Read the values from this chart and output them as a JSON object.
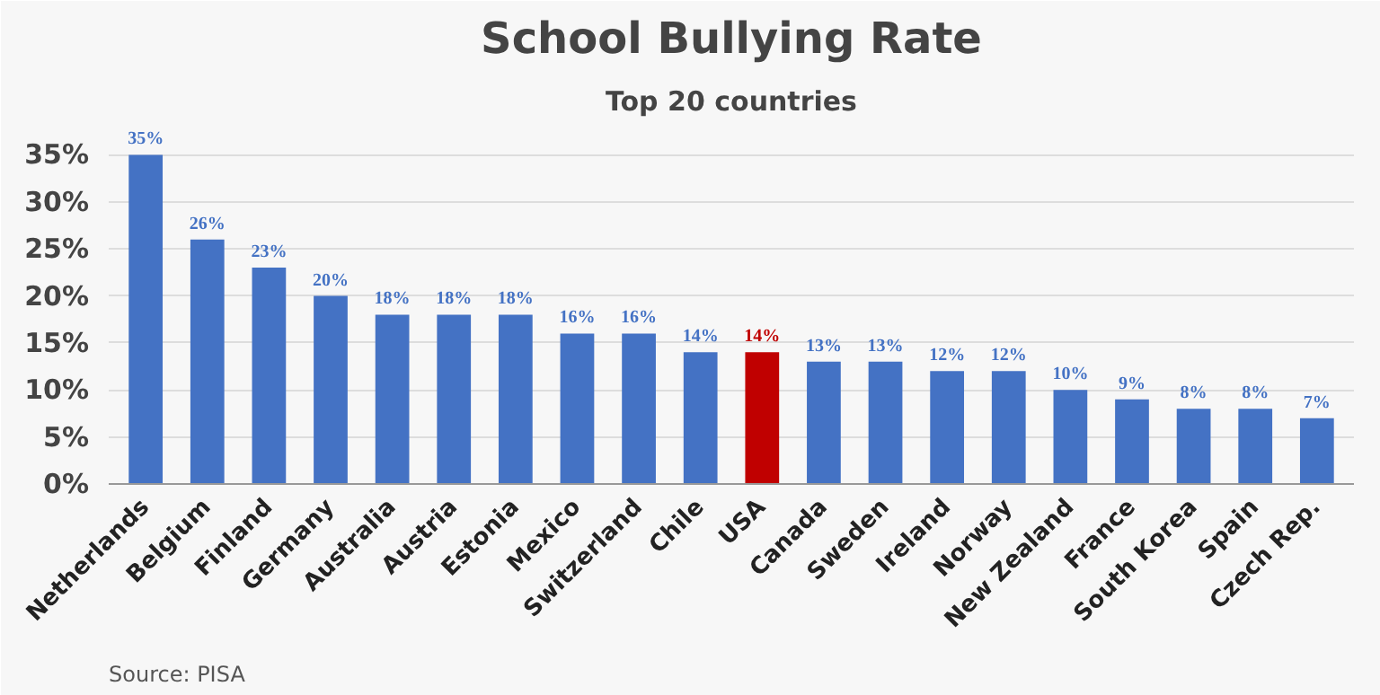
{
  "chart_data": {
    "type": "bar",
    "title": "School Bullying Rate",
    "subtitle": "Top 20 countries",
    "categories": [
      "Netherlands",
      "Belgium",
      "Finland",
      "Germany",
      "Australia",
      "Austria",
      "Estonia",
      "Mexico",
      "Switzerland",
      "Chile",
      "USA",
      "Canada",
      "Sweden",
      "Ireland",
      "Norway",
      "New Zealand",
      "France",
      "South Korea",
      "Spain",
      "Czech Rep."
    ],
    "values": [
      35,
      26,
      23,
      20,
      18,
      18,
      18,
      16,
      16,
      14,
      14,
      13,
      13,
      12,
      12,
      10,
      9,
      8,
      8,
      7
    ],
    "value_labels": [
      "35%",
      "26%",
      "23%",
      "20%",
      "18%",
      "18%",
      "18%",
      "16%",
      "16%",
      "14%",
      "14%",
      "13%",
      "13%",
      "12%",
      "12%",
      "10%",
      "9%",
      "8%",
      "8%",
      "7%"
    ],
    "colors": [
      "#4472c4",
      "#4472c4",
      "#4472c4",
      "#4472c4",
      "#4472c4",
      "#4472c4",
      "#4472c4",
      "#4472c4",
      "#4472c4",
      "#4472c4",
      "#c00000",
      "#4472c4",
      "#4472c4",
      "#4472c4",
      "#4472c4",
      "#4472c4",
      "#4472c4",
      "#4472c4",
      "#4472c4",
      "#4472c4"
    ],
    "ylim": [
      0,
      38
    ],
    "yticks": [
      {
        "value": 0,
        "label": "0%"
      },
      {
        "value": 5,
        "label": "5%"
      },
      {
        "value": 10,
        "label": "10%"
      },
      {
        "value": 15,
        "label": "15%"
      },
      {
        "value": 20,
        "label": "20%"
      },
      {
        "value": 25,
        "label": "25%"
      },
      {
        "value": 30,
        "label": "30%"
      },
      {
        "value": 35,
        "label": "35%"
      }
    ],
    "grid": "y",
    "annotations": [
      "Source: PISA"
    ]
  }
}
